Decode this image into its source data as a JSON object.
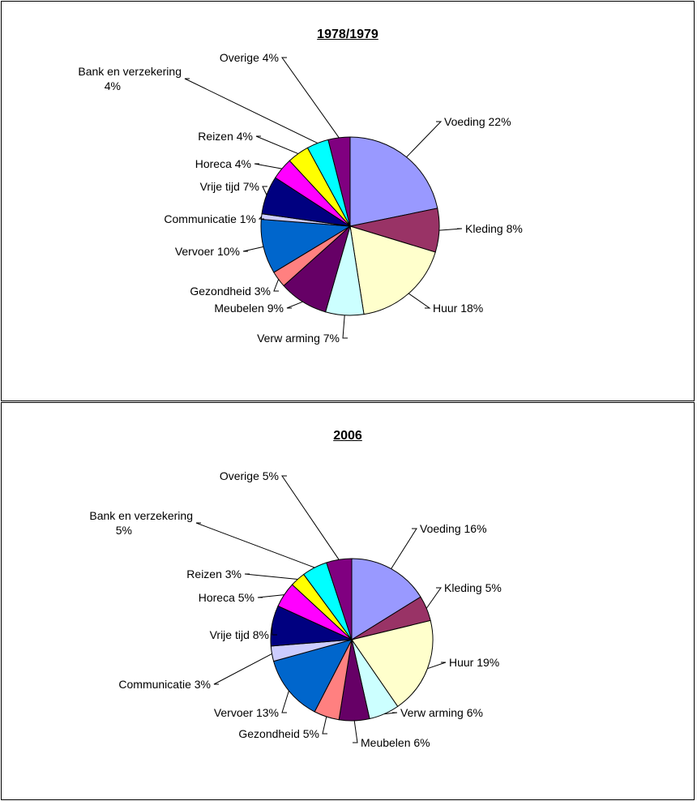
{
  "chart_data": [
    {
      "type": "pie",
      "title": "1978/1979",
      "slices": [
        {
          "label": "Voeding 22%",
          "value": 22,
          "color": "#9999ff"
        },
        {
          "label": "Kleding 8%",
          "value": 8,
          "color": "#993366"
        },
        {
          "label": "Huur 18%",
          "value": 18,
          "color": "#ffffcc"
        },
        {
          "label": "Verw arming 7%",
          "value": 7,
          "color": "#ccffff"
        },
        {
          "label": "Meubelen 9%",
          "value": 9,
          "color": "#660066"
        },
        {
          "label": "Gezondheid 3%",
          "value": 3,
          "color": "#ff8080"
        },
        {
          "label": "Vervoer 10%",
          "value": 10,
          "color": "#0066cc"
        },
        {
          "label": "Communicatie 1%",
          "value": 1,
          "color": "#ccccff"
        },
        {
          "label": "Vrije tijd 7%",
          "value": 7,
          "color": "#000080"
        },
        {
          "label": "Horeca 4%",
          "value": 4,
          "color": "#ff00ff"
        },
        {
          "label": "Reizen 4%",
          "value": 4,
          "color": "#ffff00"
        },
        {
          "label": "Bank en verzekering 4%",
          "value": 4,
          "color": "#00ffff"
        },
        {
          "label": "Overige 4%",
          "value": 4,
          "color": "#800080"
        }
      ]
    },
    {
      "type": "pie",
      "title": "2006",
      "slices": [
        {
          "label": "Voeding 16%",
          "value": 16,
          "color": "#9999ff"
        },
        {
          "label": "Kleding 5%",
          "value": 5,
          "color": "#993366"
        },
        {
          "label": "Huur 19%",
          "value": 19,
          "color": "#ffffcc"
        },
        {
          "label": "Verw arming 6%",
          "value": 6,
          "color": "#ccffff"
        },
        {
          "label": "Meubelen 6%",
          "value": 6,
          "color": "#660066"
        },
        {
          "label": "Gezondheid 5%",
          "value": 5,
          "color": "#ff8080"
        },
        {
          "label": "Vervoer 13%",
          "value": 13,
          "color": "#0066cc"
        },
        {
          "label": "Communicatie 3%",
          "value": 3,
          "color": "#ccccff"
        },
        {
          "label": "Vrije tijd 8%",
          "value": 8,
          "color": "#000080"
        },
        {
          "label": "Horeca 5%",
          "value": 5,
          "color": "#ff00ff"
        },
        {
          "label": "Reizen 3%",
          "value": 3,
          "color": "#ffff00"
        },
        {
          "label": "Bank en verzekering 5%",
          "value": 5,
          "color": "#00ffff"
        },
        {
          "label": "Overige 5%",
          "value": 5,
          "color": "#800080"
        }
      ]
    }
  ]
}
